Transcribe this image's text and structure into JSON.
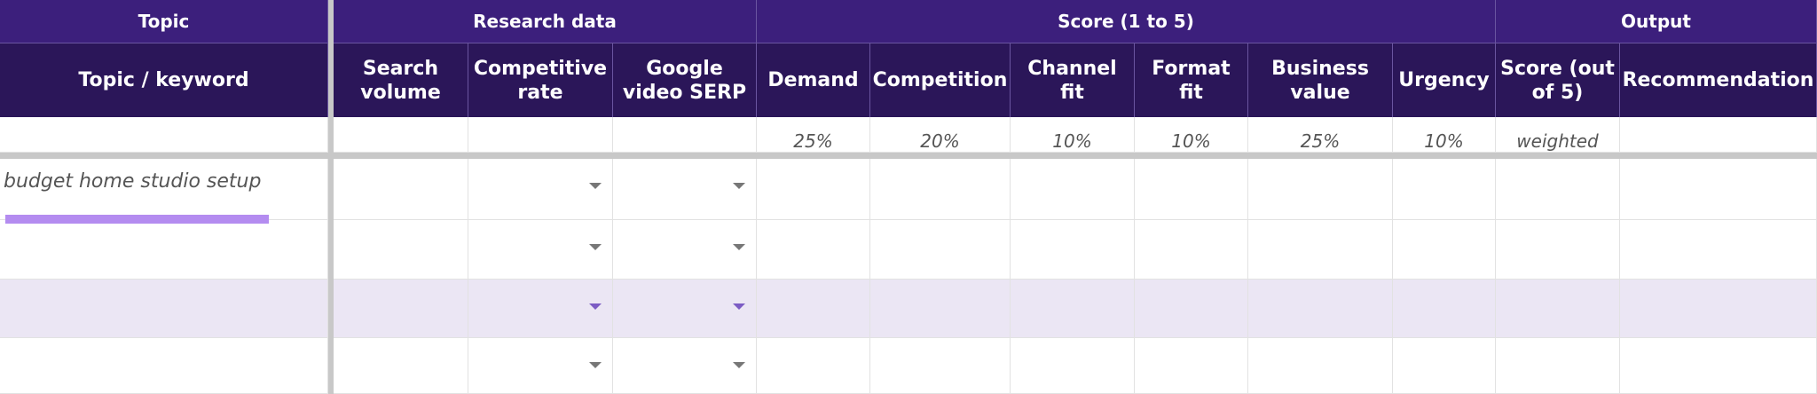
{
  "group_headers": [
    "Topic",
    "Research data",
    "Score (1 to 5)",
    "Output"
  ],
  "column_headers": [
    "Topic / keyword",
    "Search volume",
    "Competitive rate",
    "Google video SERP",
    "Demand",
    "Competition",
    "Channel fit",
    "Format fit",
    "Business value",
    "Urgency",
    "Score (out of 5)",
    "Recommendation"
  ],
  "weights": [
    "25%",
    "20%",
    "10%",
    "10%",
    "25%",
    "10%",
    "weighted"
  ],
  "rows": [
    {
      "topic": "budget home studio setup"
    }
  ]
}
